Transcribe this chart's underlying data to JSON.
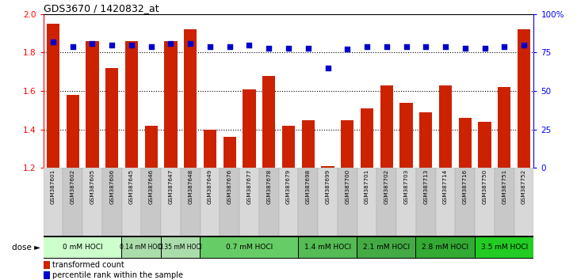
{
  "title": "GDS3670 / 1420832_at",
  "samples": [
    "GSM387601",
    "GSM387602",
    "GSM387605",
    "GSM387606",
    "GSM387645",
    "GSM387646",
    "GSM387647",
    "GSM387648",
    "GSM387649",
    "GSM387676",
    "GSM387677",
    "GSM387678",
    "GSM387679",
    "GSM387698",
    "GSM387699",
    "GSM387700",
    "GSM387701",
    "GSM387702",
    "GSM387703",
    "GSM387713",
    "GSM387714",
    "GSM387716",
    "GSM387750",
    "GSM387751",
    "GSM387752"
  ],
  "bar_values": [
    1.95,
    1.58,
    1.86,
    1.72,
    1.86,
    1.42,
    1.86,
    1.92,
    1.4,
    1.36,
    1.61,
    1.68,
    1.42,
    1.45,
    1.21,
    1.45,
    1.51,
    1.63,
    1.54,
    1.49,
    1.63,
    1.46,
    1.44,
    1.62,
    1.92
  ],
  "percentile_values": [
    82,
    79,
    81,
    80,
    80,
    79,
    81,
    81,
    79,
    79,
    80,
    78,
    78,
    78,
    65,
    77,
    79,
    79,
    79,
    79,
    79,
    78,
    78,
    79,
    80
  ],
  "dose_groups": [
    {
      "label": "0 mM HOCl",
      "start": 0,
      "end": 4,
      "color": "#ccffcc"
    },
    {
      "label": "0.14 mM HOCl",
      "start": 4,
      "end": 6,
      "color": "#aaddaa"
    },
    {
      "label": "0.35 mM HOCl",
      "start": 6,
      "end": 8,
      "color": "#aaddaa"
    },
    {
      "label": "0.7 mM HOCl",
      "start": 8,
      "end": 13,
      "color": "#66cc66"
    },
    {
      "label": "1.4 mM HOCl",
      "start": 13,
      "end": 16,
      "color": "#55bb55"
    },
    {
      "label": "2.1 mM HOCl",
      "start": 16,
      "end": 19,
      "color": "#44aa44"
    },
    {
      "label": "2.8 mM HOCl",
      "start": 19,
      "end": 22,
      "color": "#33aa33"
    },
    {
      "label": "3.5 mM HOCl",
      "start": 22,
      "end": 25,
      "color": "#22cc22"
    }
  ],
  "ylim_left": [
    1.2,
    2.0
  ],
  "ylim_right": [
    0,
    100
  ],
  "yticks_left": [
    1.2,
    1.4,
    1.6,
    1.8,
    2.0
  ],
  "yticks_right": [
    0,
    25,
    50,
    75,
    100
  ],
  "ytick_labels_right": [
    "0",
    "25",
    "50",
    "75",
    "100%"
  ],
  "bar_color": "#cc2200",
  "dot_color": "#0000cc",
  "background_color": "#ffffff",
  "legend_bar_label": "transformed count",
  "legend_dot_label": "percentile rank within the sample"
}
